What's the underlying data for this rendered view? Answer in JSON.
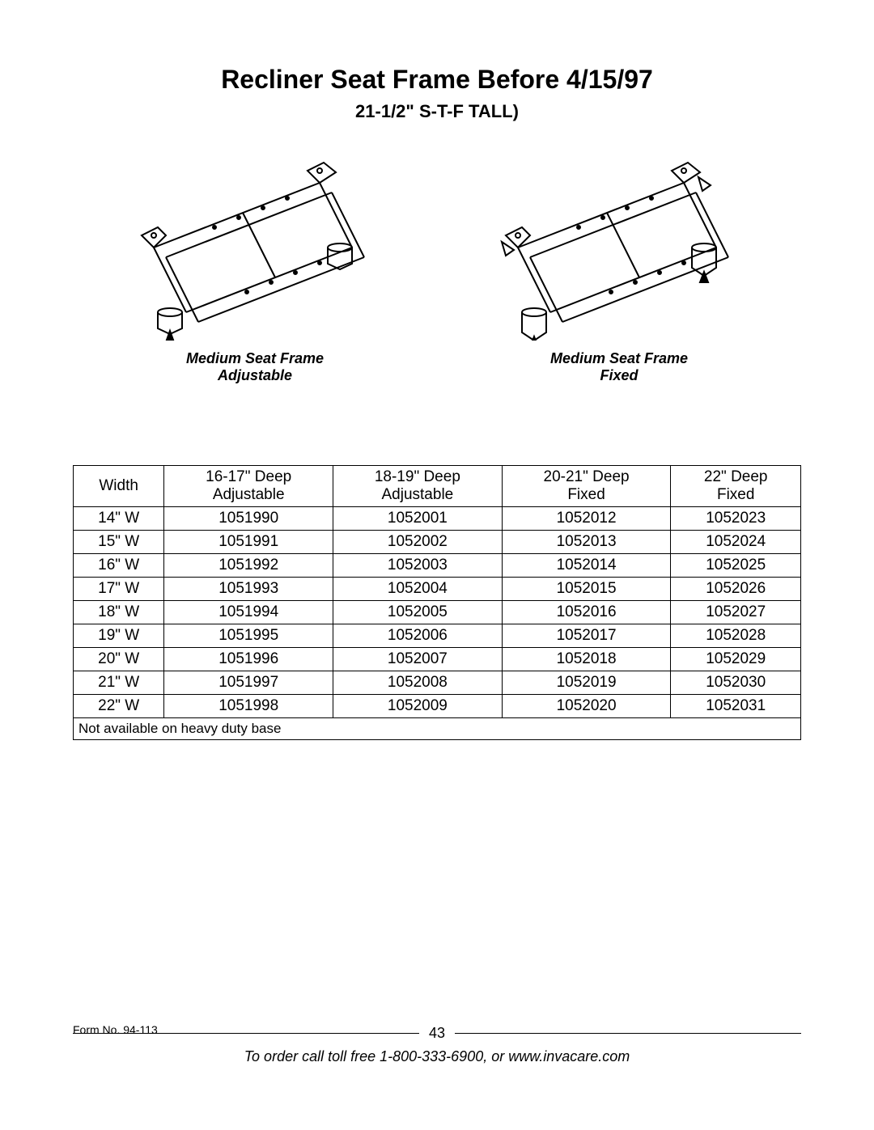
{
  "title": "Recliner Seat Frame Before 4/15/97",
  "subtitle": "21-1/2\" S-T-F TALL)",
  "figures": {
    "left": {
      "line1": "Medium Seat Frame",
      "line2": "Adjustable"
    },
    "right": {
      "line1": "Medium Seat Frame",
      "line2": "Fixed"
    }
  },
  "table": {
    "columns": [
      {
        "line1": "Width",
        "line2": ""
      },
      {
        "line1": "16-17\" Deep",
        "line2": "Adjustable"
      },
      {
        "line1": "18-19\" Deep",
        "line2": "Adjustable"
      },
      {
        "line1": "20-21\" Deep",
        "line2": "Fixed"
      },
      {
        "line1": "22\" Deep",
        "line2": "Fixed"
      }
    ],
    "rows": [
      [
        "14\" W",
        "1051990",
        "1052001",
        "1052012",
        "1052023"
      ],
      [
        "15\" W",
        "1051991",
        "1052002",
        "1052013",
        "1052024"
      ],
      [
        "16\" W",
        "1051992",
        "1052003",
        "1052014",
        "1052025"
      ],
      [
        "17\" W",
        "1051993",
        "1052004",
        "1052015",
        "1052026"
      ],
      [
        "18\" W",
        "1051994",
        "1052005",
        "1052016",
        "1052027"
      ],
      [
        "19\" W",
        "1051995",
        "1052006",
        "1052017",
        "1052028"
      ],
      [
        "20\" W",
        "1051996",
        "1052007",
        "1052018",
        "1052029"
      ],
      [
        "21\" W",
        "1051997",
        "1052008",
        "1052019",
        "1052030"
      ],
      [
        "22\" W",
        "1051998",
        "1052009",
        "1052020",
        "1052031"
      ]
    ],
    "footnote": "Not available on heavy duty base"
  },
  "footer": {
    "page_number": "43",
    "form_no": "Form No. 94-113",
    "order_text": "To order call toll free 1-800-333-6900, or www.invacare.com"
  }
}
